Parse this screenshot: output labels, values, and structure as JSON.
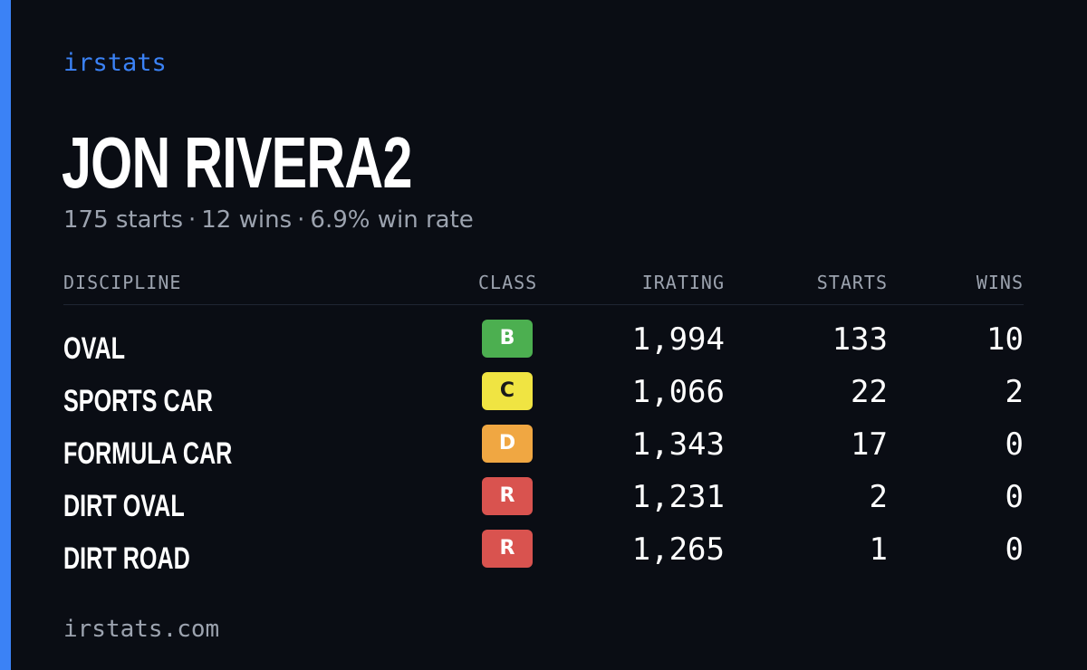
{
  "brand": "irstats",
  "driver": {
    "name": "JON RIVERA2"
  },
  "summary": {
    "starts": "175 starts",
    "wins": "12 wins",
    "win_rate": "6.9% win rate",
    "separator": "·"
  },
  "table": {
    "headers": {
      "discipline": "DISCIPLINE",
      "class": "CLASS",
      "irating": "IRATING",
      "starts": "STARTS",
      "wins": "WINS"
    },
    "rows": [
      {
        "discipline": "OVAL",
        "class": "B",
        "class_color": "#4caf50",
        "class_text_color": "#ffffff",
        "irating": "1,994",
        "starts": "133",
        "wins": "10"
      },
      {
        "discipline": "SPORTS CAR",
        "class": "C",
        "class_color": "#f0e442",
        "class_text_color": "#1a1a1a",
        "irating": "1,066",
        "starts": "22",
        "wins": "2"
      },
      {
        "discipline": "FORMULA CAR",
        "class": "D",
        "class_color": "#f0a742",
        "class_text_color": "#ffffff",
        "irating": "1,343",
        "starts": "17",
        "wins": "0"
      },
      {
        "discipline": "DIRT OVAL",
        "class": "R",
        "class_color": "#d9534f",
        "class_text_color": "#ffffff",
        "irating": "1,231",
        "starts": "2",
        "wins": "0"
      },
      {
        "discipline": "DIRT ROAD",
        "class": "R",
        "class_color": "#d9534f",
        "class_text_color": "#ffffff",
        "irating": "1,265",
        "starts": "1",
        "wins": "0"
      }
    ]
  },
  "footer": "irstats.com",
  "colors": {
    "background": "#0a0d14",
    "accent": "#3b82f6",
    "muted": "#9ca3af"
  }
}
